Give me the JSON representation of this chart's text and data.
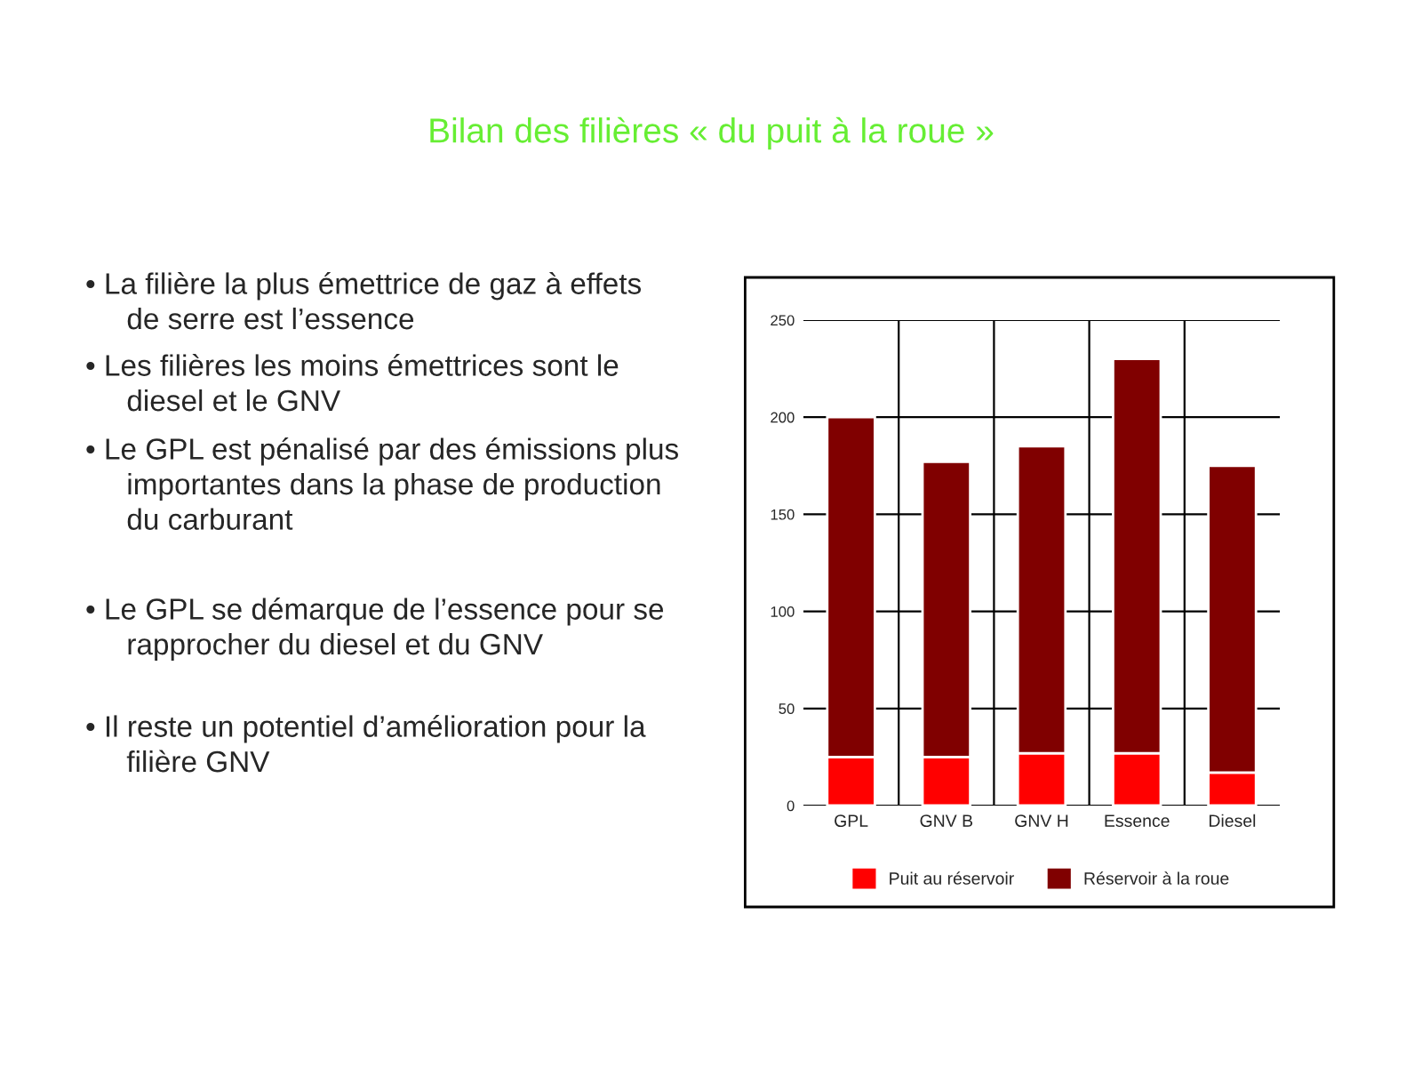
{
  "chart_data": {
    "type": "bar",
    "title": "Bilan des filières « du puit à la roue »",
    "categories": [
      "GPL",
      "GNV B",
      "GNV H",
      "Essence",
      "Diesel"
    ],
    "stacked": true,
    "series": [
      {
        "name": "Puit au réservoir",
        "color": "#ff0000",
        "values": [
          25,
          25,
          27,
          27,
          17
        ]
      },
      {
        "name": "Réservoir à la roue",
        "color": "#800000",
        "values": [
          175,
          152,
          158,
          203,
          158
        ]
      }
    ],
    "ylim": [
      0,
      250
    ],
    "yticks": [
      0,
      50,
      100,
      150,
      200,
      250
    ],
    "grid": true,
    "legend": "bottom",
    "annotations": [
      "• La filière la plus émettrice de gaz à effets de serre est l’essence",
      "• Les filières les moins émettrices sont le diesel et le GNV",
      "• Le GPL est pénalisé par des émissions plus importantes dans la phase de production du carburant",
      "• Le GPL se démarque de l’essence pour se rapprocher du diesel et du GNV",
      "• Il reste un potentiel d’amélioration pour la filière GNV"
    ]
  }
}
